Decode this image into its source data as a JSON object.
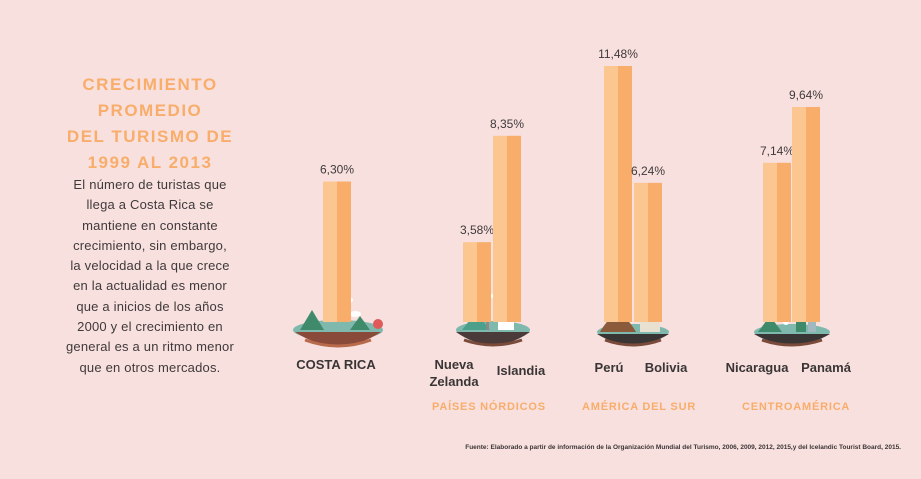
{
  "title": [
    "CRECIMIENTO PROMEDIO",
    "DEL TURISMO DE",
    "1999 AL 2013"
  ],
  "description": [
    "El número de turistas que",
    "llega a Costa Rica se",
    "mantiene en constante",
    "crecimiento, sin embargo,",
    "la velocidad a la que crece",
    "en la actualidad es menor",
    "que a inicios de los años",
    "2000 y el crecimiento en",
    "general es a un ritmo menor",
    "que en otros mercados."
  ],
  "groups": {
    "nordic": "PAÍSES NÓRDICOS",
    "south_america": "AMÉRICA DEL SUR",
    "central_america": "CENTROAMÉRICA"
  },
  "source": "Fuente: Elaborado a partir de información de la Organización Mundial del Turismo, 2006, 2009, 2012, 2015,y del Icelandic Tourist Board, 2015.",
  "category_labels": {
    "costa_rica": [
      "COSTA RICA"
    ],
    "nueva_zelanda": [
      "Nueva",
      "Zelanda"
    ],
    "islandia": [
      "Islandia"
    ],
    "peru": [
      "Perú"
    ],
    "bolivia": [
      "Bolivia"
    ],
    "nicaragua": [
      "Nicaragua"
    ],
    "panama": [
      "Panamá"
    ]
  },
  "colors": {
    "background": "#f8e0df",
    "bar_light": "#fcc690",
    "bar_dark": "#f8ad6a",
    "accent": "#f8ad6a",
    "text": "#3f3a3a"
  },
  "chart_data": {
    "type": "bar",
    "title": "Crecimiento promedio del turismo de 1999 al 2013",
    "unit": "%",
    "categories": [
      "Costa Rica",
      "Nueva Zelanda",
      "Islandia",
      "Perú",
      "Bolivia",
      "Nicaragua",
      "Panamá"
    ],
    "values": [
      6.3,
      3.58,
      8.35,
      11.48,
      6.24,
      7.14,
      9.64
    ],
    "value_labels": [
      "6,30%",
      "3,58%",
      "8,35%",
      "11,48%",
      "6,24%",
      "7,14%",
      "9,64%"
    ],
    "groups": [
      {
        "name": "",
        "members": [
          "Costa Rica"
        ]
      },
      {
        "name": "PAÍSES NÓRDICOS",
        "members": [
          "Nueva Zelanda",
          "Islandia"
        ]
      },
      {
        "name": "AMÉRICA DEL SUR",
        "members": [
          "Perú",
          "Bolivia"
        ]
      },
      {
        "name": "CENTROAMÉRICA",
        "members": [
          "Nicaragua",
          "Panamá"
        ]
      }
    ],
    "ylim": [
      0,
      12
    ],
    "grid": false,
    "legend": "none"
  }
}
